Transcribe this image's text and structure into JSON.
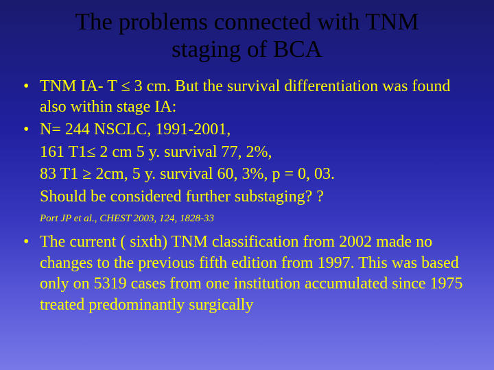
{
  "slide": {
    "background_gradient": [
      "#1a1a6e",
      "#2020a0",
      "#3838c0",
      "#5858d8",
      "#7878e8"
    ],
    "title_color": "#000000",
    "text_color": "#ffff00",
    "font_family": "Times New Roman",
    "title": "The problems connected with TNM staging of BCA",
    "title_fontsize": 35,
    "body_fontsize": 24,
    "citation_fontsize": 15,
    "bullets": [
      {
        "text": "TNM IA- T ≤ 3 cm. But the survival differentiation was found also within stage IA:",
        "continuation": []
      },
      {
        "text": "N= 244 NSCLC, 1991-2001,",
        "continuation": [
          "161 T1≤ 2 cm 5 y. survival 77, 2%,",
          " 83 T1 ≥ 2cm, 5 y. survival 60, 3%, p = 0, 03.",
          "Should be considered further substaging? ?"
        ]
      }
    ],
    "citation": "Port JP et al., CHEST 2003, 124, 1828-33",
    "bullets2": [
      {
        "text": "The current ( sixth) TNM classification from 2002  made no changes to the previous fifth edition from 1997. This was based only on 5319 cases from one institution accumulated since 1975 treated predominantly surgically",
        "continuation": []
      }
    ]
  }
}
